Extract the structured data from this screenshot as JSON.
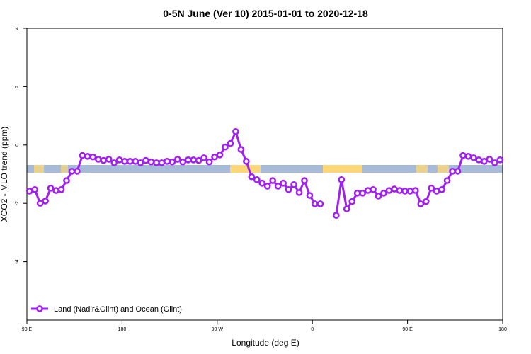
{
  "chart_data": {
    "type": "line",
    "title": "0-5N June (Ver 10)   2015-01-01 to 2020-12-18",
    "x_label": "Longitude (deg E)",
    "y_label": "XCO2 - MLO trend (ppm)",
    "xlim": [
      90,
      540
    ],
    "ylim": [
      -6,
      4
    ],
    "xticks": [
      {
        "value": 90,
        "label": "90 E"
      },
      {
        "value": 180,
        "label": "180"
      },
      {
        "value": 270,
        "label": "90 W"
      },
      {
        "value": 360,
        "label": "0"
      },
      {
        "value": 450,
        "label": "90 E"
      },
      {
        "value": 540,
        "label": "180"
      }
    ],
    "yticks": [
      -4,
      -2,
      0,
      2,
      4
    ],
    "legend_position": "bottom-left",
    "x": [
      92.5,
      97.5,
      102.5,
      107.5,
      112.5,
      117.5,
      122.5,
      127.5,
      132.5,
      137.5,
      142.5,
      147.5,
      152.5,
      157.5,
      162.5,
      167.5,
      172.5,
      177.5,
      182.5,
      187.5,
      192.5,
      197.5,
      202.5,
      207.5,
      212.5,
      217.5,
      222.5,
      227.5,
      232.5,
      237.5,
      242.5,
      247.5,
      252.5,
      257.5,
      262.5,
      267.5,
      272.5,
      277.5,
      282.5,
      287.5,
      292.5,
      297.5,
      302.5,
      307.5,
      312.5,
      317.5,
      322.5,
      327.5,
      332.5,
      337.5,
      342.5,
      347.5,
      352.5,
      357.5,
      362.5,
      367.5,
      372.5,
      377.5,
      382.5,
      387.5,
      392.5,
      397.5,
      402.5,
      407.5,
      412.5,
      417.5,
      422.5,
      427.5,
      432.5,
      437.5,
      442.5,
      447.5,
      452.5,
      457.5,
      462.5,
      467.5,
      472.5,
      477.5,
      482.5,
      487.5,
      492.5,
      497.5,
      502.5,
      507.5,
      512.5,
      517.5,
      522.5,
      527.5,
      532.5,
      537.5
    ],
    "series": [
      {
        "name": "Land (Nadir&Glint) and Ocean (Glint)",
        "color": "#a020f0",
        "values": [
          -1.58,
          -1.53,
          -2.0,
          -1.92,
          -1.48,
          -1.56,
          -1.53,
          -1.22,
          -0.9,
          -0.9,
          -0.36,
          -0.39,
          -0.41,
          -0.49,
          -0.53,
          -0.49,
          -0.61,
          -0.51,
          -0.56,
          -0.56,
          -0.56,
          -0.61,
          -0.53,
          -0.58,
          -0.61,
          -0.61,
          -0.56,
          -0.58,
          -0.49,
          -0.58,
          -0.51,
          -0.51,
          -0.53,
          -0.44,
          -0.58,
          -0.41,
          -0.34,
          -0.07,
          0.05,
          0.46,
          -0.15,
          -0.56,
          -1.09,
          -1.19,
          -1.31,
          -1.41,
          -1.22,
          -1.41,
          -1.31,
          -1.53,
          -1.36,
          -1.63,
          -1.22,
          -1.73,
          -2.02,
          -2.02,
          null,
          null,
          -2.41,
          -1.19,
          -2.19,
          -1.94,
          -1.65,
          -1.65,
          -1.56,
          -1.53,
          -1.75,
          -1.65,
          -1.56,
          -1.51,
          -1.56,
          -1.58,
          -1.58,
          -1.56,
          -2.02,
          -1.94,
          -1.48,
          -1.58,
          -1.53,
          -1.22,
          -0.9,
          -0.9,
          -0.36,
          -0.39,
          -0.44,
          -0.51,
          -0.56,
          -0.49,
          -0.61,
          -0.51
        ]
      }
    ]
  }
}
